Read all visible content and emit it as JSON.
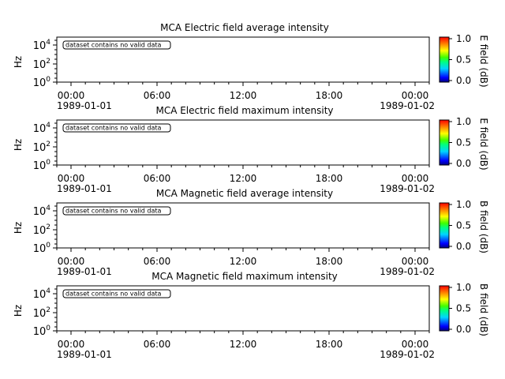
{
  "chart_data": [
    {
      "type": "heatmap",
      "title": "MCA  Electric field average intensity",
      "ylabel": "Hz",
      "colorbar_label": "E field (dB)",
      "colorbar_ticks": [
        "1.0",
        "0.5",
        "0.0"
      ],
      "colorbar_range": [
        0.0,
        1.0
      ],
      "y_ticks": [
        {
          "base": "10",
          "exp": "4"
        },
        {
          "base": "10",
          "exp": "2"
        },
        {
          "base": "10",
          "exp": "0"
        }
      ],
      "x_ticks": [
        "00:00",
        "06:00",
        "12:00",
        "18:00",
        "00:00"
      ],
      "x_start_date": "1989-01-01",
      "x_end_date": "1989-01-02",
      "annotation": "dataset contains no valid data",
      "values": []
    },
    {
      "type": "heatmap",
      "title": "MCA  Electric field maximum intensity",
      "ylabel": "Hz",
      "colorbar_label": "E field (dB)",
      "colorbar_ticks": [
        "1.0",
        "0.5",
        "0.0"
      ],
      "colorbar_range": [
        0.0,
        1.0
      ],
      "y_ticks": [
        {
          "base": "10",
          "exp": "4"
        },
        {
          "base": "10",
          "exp": "2"
        },
        {
          "base": "10",
          "exp": "0"
        }
      ],
      "x_ticks": [
        "00:00",
        "06:00",
        "12:00",
        "18:00",
        "00:00"
      ],
      "x_start_date": "1989-01-01",
      "x_end_date": "1989-01-02",
      "annotation": "dataset contains no valid data",
      "values": []
    },
    {
      "type": "heatmap",
      "title": "MCA  Magnetic field average intensity",
      "ylabel": "Hz",
      "colorbar_label": "B field (dB)",
      "colorbar_ticks": [
        "1.0",
        "0.5",
        "0.0"
      ],
      "colorbar_range": [
        0.0,
        1.0
      ],
      "y_ticks": [
        {
          "base": "10",
          "exp": "4"
        },
        {
          "base": "10",
          "exp": "2"
        },
        {
          "base": "10",
          "exp": "0"
        }
      ],
      "x_ticks": [
        "00:00",
        "06:00",
        "12:00",
        "18:00",
        "00:00"
      ],
      "x_start_date": "1989-01-01",
      "x_end_date": "1989-01-02",
      "annotation": "dataset contains no valid data",
      "values": []
    },
    {
      "type": "heatmap",
      "title": "MCA  Magnetic field maximum intensity",
      "ylabel": "Hz",
      "colorbar_label": "B field (dB)",
      "colorbar_ticks": [
        "1.0",
        "0.5",
        "0.0"
      ],
      "colorbar_range": [
        0.0,
        1.0
      ],
      "y_ticks": [
        {
          "base": "10",
          "exp": "4"
        },
        {
          "base": "10",
          "exp": "2"
        },
        {
          "base": "10",
          "exp": "0"
        }
      ],
      "x_ticks": [
        "00:00",
        "06:00",
        "12:00",
        "18:00",
        "00:00"
      ],
      "x_start_date": "1989-01-01",
      "x_end_date": "1989-01-02",
      "annotation": "dataset contains no valid data",
      "values": []
    }
  ]
}
